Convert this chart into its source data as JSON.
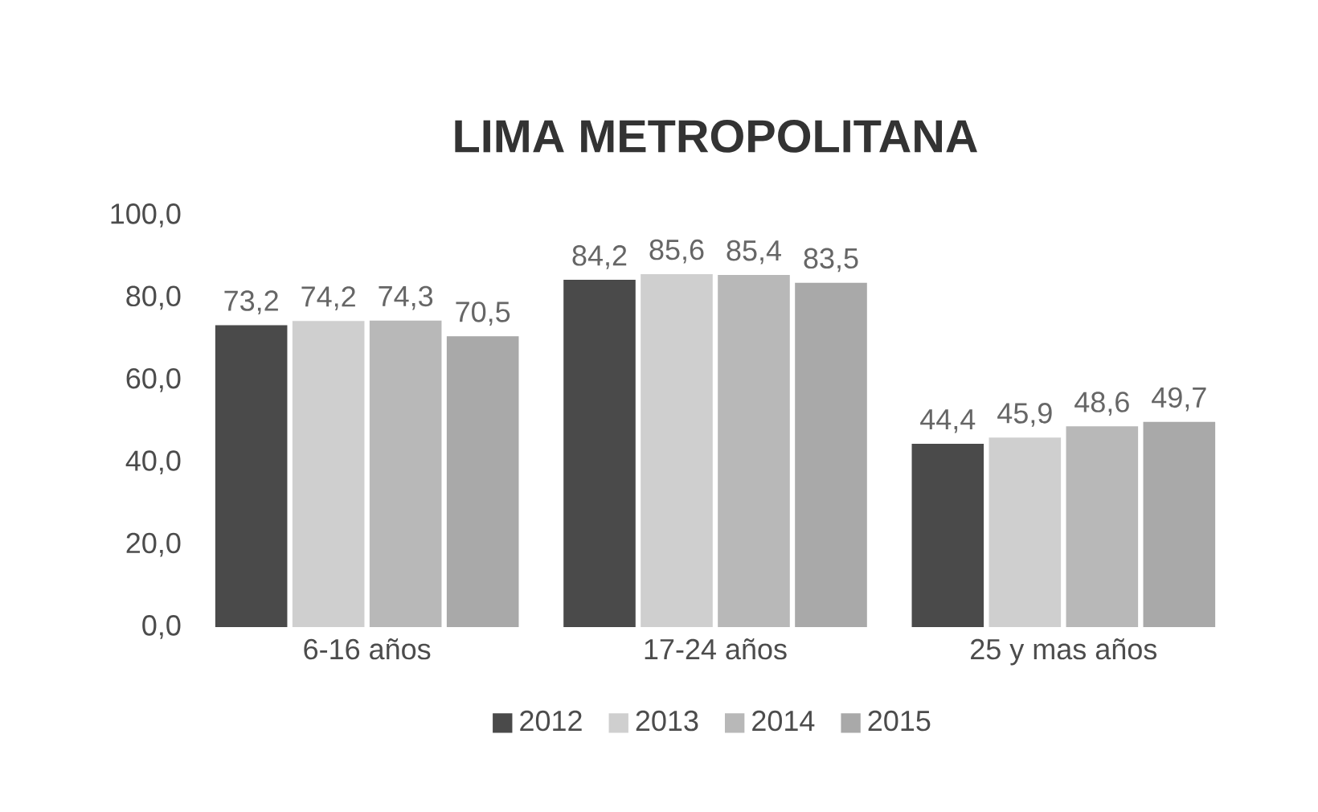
{
  "chart_data": {
    "type": "bar",
    "title": "LIMA METROPOLITANA",
    "categories": [
      "6-16 años",
      "17-24 años",
      "25 y mas años"
    ],
    "series": [
      {
        "name": "2012",
        "color": "#4a4a4a",
        "values": [
          73.2,
          84.2,
          44.4
        ],
        "value_labels": [
          "73,2",
          "84,2",
          "44,4"
        ]
      },
      {
        "name": "2013",
        "color": "#cfcfcf",
        "values": [
          74.2,
          85.6,
          45.9
        ],
        "value_labels": [
          "74,2",
          "85,6",
          "45,9"
        ]
      },
      {
        "name": "2014",
        "color": "#b8b8b8",
        "values": [
          74.3,
          85.4,
          48.6
        ],
        "value_labels": [
          "74,3",
          "85,4",
          "48,6"
        ]
      },
      {
        "name": "2015",
        "color": "#a9a9a9",
        "values": [
          70.5,
          83.5,
          49.7
        ],
        "value_labels": [
          "70,5",
          "83,5",
          "49,7"
        ]
      }
    ],
    "ylim": [
      0,
      100
    ],
    "yticks": [
      {
        "value": 0,
        "label": "0,0"
      },
      {
        "value": 20,
        "label": "20,0"
      },
      {
        "value": 40,
        "label": "40,0"
      },
      {
        "value": 60,
        "label": "60,0"
      },
      {
        "value": 80,
        "label": "80,0"
      },
      {
        "value": 100,
        "label": "100,0"
      }
    ],
    "legend": "bottom"
  }
}
